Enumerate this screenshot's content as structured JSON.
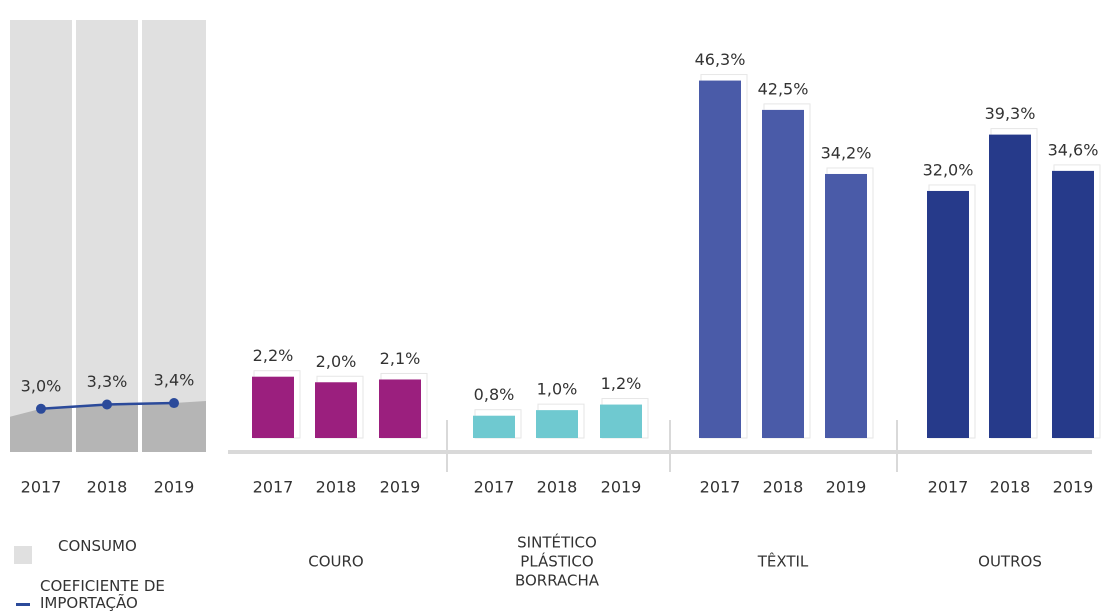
{
  "chart_data": [
    {
      "type": "line",
      "categories": [
        "2017",
        "2018",
        "2019"
      ],
      "background": {
        "name": "CONSUMO",
        "color": "#e0e0e0"
      },
      "series": [
        {
          "name": "COEFICIENTE DE IMPORTAÇÃO",
          "color": "#2b4a9a",
          "values": [
            3.0,
            3.3,
            3.4
          ],
          "value_labels": [
            "3,0%",
            "3,3%",
            "3,4%"
          ]
        }
      ],
      "ylim": [
        0,
        30
      ]
    },
    {
      "type": "bar",
      "title": [
        "COURO"
      ],
      "categories": [
        "2017",
        "2018",
        "2019"
      ],
      "values": [
        2.2,
        2.0,
        2.1
      ],
      "value_labels": [
        "2,2%",
        "2,0%",
        "2,1%"
      ],
      "color": "#9b1f7e",
      "ylim": [
        0,
        15
      ]
    },
    {
      "type": "bar",
      "title": [
        "SINTÉTICO",
        "PLÁSTICO",
        "BORRACHA"
      ],
      "categories": [
        "2017",
        "2018",
        "2019"
      ],
      "values": [
        0.8,
        1.0,
        1.2
      ],
      "value_labels": [
        "0,8%",
        "1,0%",
        "1,2%"
      ],
      "color": "#6fc9d0",
      "ylim": [
        0,
        15
      ]
    },
    {
      "type": "bar",
      "title": [
        "TÊXTIL"
      ],
      "categories": [
        "2017",
        "2018",
        "2019"
      ],
      "values": [
        46.3,
        42.5,
        34.2
      ],
      "value_labels": [
        "46,3%",
        "42,5%",
        "34,2%"
      ],
      "color": "#4a5ba8",
      "ylim": [
        0,
        50
      ]
    },
    {
      "type": "bar",
      "title": [
        "OUTROS"
      ],
      "categories": [
        "2017",
        "2018",
        "2019"
      ],
      "values": [
        32.0,
        39.3,
        34.6
      ],
      "value_labels": [
        "32,0%",
        "39,3%",
        "34,6%"
      ],
      "color": "#263a8a",
      "ylim": [
        0,
        50
      ]
    }
  ]
}
